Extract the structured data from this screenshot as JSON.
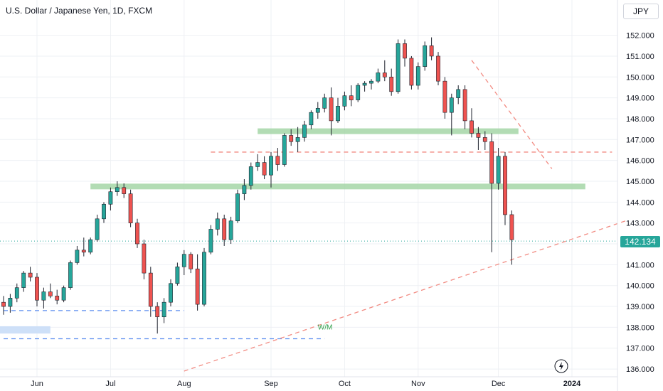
{
  "title": "U.S. Dollar / Japanese Yen, 1D, FXCM",
  "currency": "JPY",
  "last_price_label": "142.134",
  "annotation_wm": "W/M",
  "colors": {
    "up": "#26a69a",
    "down": "#ef5350",
    "grid": "#eef0f4",
    "zone": "#a5d6a7",
    "dashed_red": "#f28b82",
    "dashed_blue": "#5b8def",
    "blue_zone": "#c9ddf7"
  },
  "chart_data": {
    "type": "candlestick",
    "symbol": "USDJPY",
    "interval": "1D",
    "ylim": [
      135.9,
      152.6
    ],
    "y_ticks": [
      "136.000",
      "137.000",
      "138.000",
      "139.000",
      "140.000",
      "141.000",
      "142.000",
      "143.000",
      "144.000",
      "145.000",
      "146.000",
      "147.000",
      "148.000",
      "149.000",
      "150.000",
      "151.000",
      "152.000"
    ],
    "x_ticks": [
      {
        "label": "Jun",
        "index": 5
      },
      {
        "label": "Jul",
        "index": 16
      },
      {
        "label": "Aug",
        "index": 27
      },
      {
        "label": "Sep",
        "index": 40
      },
      {
        "label": "Oct",
        "index": 51
      },
      {
        "label": "Nov",
        "index": 62
      },
      {
        "label": "Dec",
        "index": 74
      },
      {
        "label": "2024",
        "index": 85
      }
    ],
    "x_count": 93,
    "ohlc": [
      [
        139.2,
        139.5,
        138.6,
        139.0
      ],
      [
        139.0,
        139.6,
        138.7,
        139.4
      ],
      [
        139.4,
        140.1,
        139.2,
        139.9
      ],
      [
        139.9,
        140.7,
        139.7,
        140.6
      ],
      [
        140.6,
        140.9,
        140.2,
        140.4
      ],
      [
        140.4,
        140.6,
        139.0,
        139.3
      ],
      [
        139.3,
        139.9,
        138.9,
        139.7
      ],
      [
        139.7,
        140.1,
        139.4,
        139.5
      ],
      [
        139.5,
        139.8,
        139.1,
        139.3
      ],
      [
        139.3,
        140.0,
        139.2,
        139.9
      ],
      [
        139.9,
        141.2,
        139.8,
        141.1
      ],
      [
        141.1,
        141.9,
        141.0,
        141.7
      ],
      [
        141.7,
        142.3,
        141.4,
        141.6
      ],
      [
        141.6,
        142.3,
        141.5,
        142.2
      ],
      [
        142.2,
        143.4,
        142.1,
        143.2
      ],
      [
        143.2,
        144.0,
        143.0,
        143.9
      ],
      [
        143.9,
        144.7,
        143.6,
        144.5
      ],
      [
        144.5,
        145.0,
        144.3,
        144.7
      ],
      [
        144.7,
        144.9,
        144.2,
        144.4
      ],
      [
        144.4,
        144.6,
        142.8,
        143.0
      ],
      [
        143.0,
        143.2,
        141.8,
        142.0
      ],
      [
        142.0,
        142.2,
        140.3,
        140.6
      ],
      [
        140.6,
        140.9,
        138.5,
        139.0
      ],
      [
        139.0,
        139.2,
        137.7,
        138.5
      ],
      [
        138.5,
        139.4,
        138.2,
        139.2
      ],
      [
        139.2,
        140.3,
        139.0,
        140.1
      ],
      [
        140.1,
        141.1,
        140.0,
        140.9
      ],
      [
        140.9,
        141.7,
        140.5,
        141.5
      ],
      [
        141.5,
        141.6,
        140.6,
        140.8
      ],
      [
        140.8,
        141.5,
        138.8,
        139.1
      ],
      [
        139.1,
        141.8,
        139.0,
        141.6
      ],
      [
        141.6,
        142.9,
        141.5,
        142.7
      ],
      [
        142.7,
        143.5,
        142.4,
        143.2
      ],
      [
        143.2,
        143.4,
        141.9,
        142.2
      ],
      [
        142.2,
        143.3,
        142.0,
        143.1
      ],
      [
        143.1,
        144.6,
        143.0,
        144.4
      ],
      [
        144.4,
        145.1,
        144.1,
        144.8
      ],
      [
        144.8,
        145.9,
        144.6,
        145.7
      ],
      [
        145.7,
        146.3,
        145.5,
        145.9
      ],
      [
        145.9,
        146.2,
        145.1,
        145.3
      ],
      [
        145.3,
        146.4,
        144.7,
        146.2
      ],
      [
        146.2,
        146.6,
        145.5,
        145.8
      ],
      [
        145.8,
        147.3,
        145.7,
        147.2
      ],
      [
        147.2,
        147.5,
        146.7,
        146.9
      ],
      [
        146.9,
        147.6,
        146.4,
        147.1
      ],
      [
        147.1,
        147.9,
        146.9,
        147.7
      ],
      [
        147.7,
        148.4,
        147.5,
        148.3
      ],
      [
        148.3,
        148.8,
        148.0,
        148.5
      ],
      [
        148.5,
        149.2,
        148.3,
        149.0
      ],
      [
        149.0,
        149.5,
        147.2,
        147.9
      ],
      [
        147.9,
        149.0,
        147.8,
        148.6
      ],
      [
        148.6,
        149.3,
        148.4,
        149.1
      ],
      [
        149.1,
        149.6,
        148.6,
        148.9
      ],
      [
        148.9,
        149.7,
        148.8,
        149.6
      ],
      [
        149.6,
        149.8,
        149.3,
        149.7
      ],
      [
        149.7,
        149.9,
        149.4,
        149.8
      ],
      [
        149.8,
        150.4,
        149.7,
        150.2
      ],
      [
        150.2,
        150.8,
        149.8,
        150.0
      ],
      [
        150.0,
        150.4,
        149.1,
        149.3
      ],
      [
        149.3,
        151.8,
        149.2,
        151.6
      ],
      [
        151.6,
        151.8,
        150.5,
        150.9
      ],
      [
        150.9,
        151.0,
        149.4,
        149.6
      ],
      [
        149.6,
        150.7,
        149.4,
        150.5
      ],
      [
        150.5,
        151.7,
        150.3,
        151.5
      ],
      [
        151.5,
        151.9,
        150.8,
        151.0
      ],
      [
        151.0,
        151.2,
        149.6,
        149.8
      ],
      [
        149.8,
        150.0,
        148.0,
        148.3
      ],
      [
        148.3,
        149.2,
        147.2,
        149.0
      ],
      [
        149.0,
        149.6,
        148.7,
        149.4
      ],
      [
        149.4,
        149.6,
        147.5,
        147.9
      ],
      [
        147.9,
        148.5,
        147.1,
        147.3
      ],
      [
        147.3,
        147.6,
        146.5,
        147.1
      ],
      [
        147.1,
        147.4,
        146.5,
        146.9
      ],
      [
        146.9,
        147.3,
        141.6,
        144.9
      ],
      [
        144.9,
        146.6,
        144.6,
        146.2
      ],
      [
        146.2,
        146.4,
        142.9,
        143.4
      ],
      [
        143.4,
        143.6,
        141.0,
        142.2
      ]
    ],
    "annotations": [
      {
        "type": "zone",
        "price": 147.4,
        "from_index": 38,
        "to_index": 77
      },
      {
        "type": "zone",
        "price": 144.75,
        "from_index": 13,
        "to_index": 87
      },
      {
        "type": "hline_dashed",
        "price": 146.4,
        "from_index": 31,
        "to_index": 91
      },
      {
        "type": "hline_dashed",
        "price": 138.8,
        "from_index": 0,
        "to_index": 27
      },
      {
        "type": "hline_dashed",
        "price": 137.45,
        "from_index": 0,
        "to_index": 48
      },
      {
        "type": "blue_zone",
        "price_low": 137.7,
        "price_high": 138.05,
        "from_index": 0,
        "to_index": 7
      },
      {
        "type": "trendline",
        "from": [
          27,
          135.9
        ],
        "to": [
          93,
          143.1
        ]
      },
      {
        "type": "trendline",
        "from": [
          70,
          150.8
        ],
        "to": [
          82,
          145.6
        ]
      },
      {
        "type": "last_price_line",
        "price": 142.134
      }
    ]
  }
}
